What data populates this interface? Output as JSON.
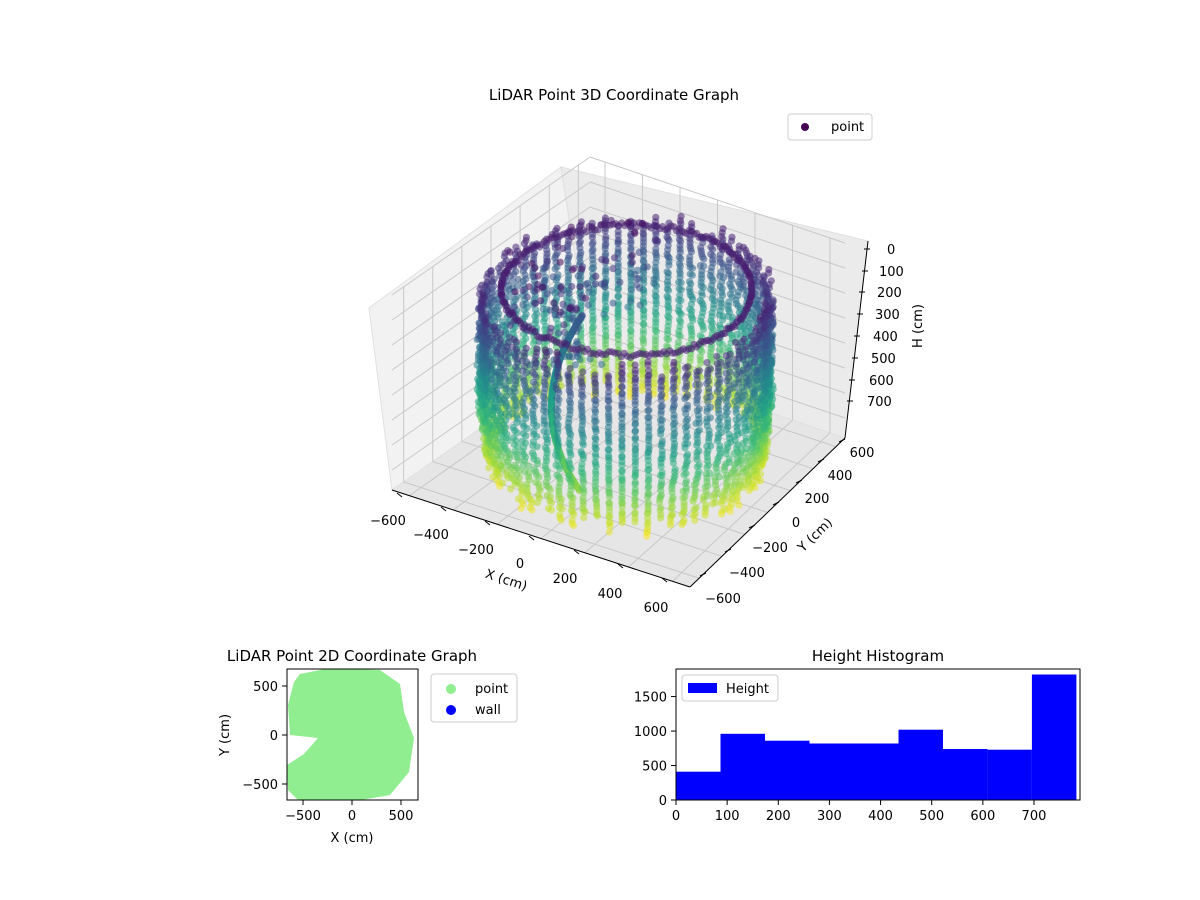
{
  "chart_data": [
    {
      "type": "scatter",
      "title": "LiDAR Point 3D Coordinate Graph",
      "projection": "3d",
      "colormap": "viridis",
      "xlabel": "X (cm)",
      "ylabel": "Y (cm)",
      "zlabel": "H (cm)",
      "xlim": [
        -680,
        680
      ],
      "ylim": [
        -680,
        680
      ],
      "zlim": [
        0,
        780
      ],
      "z_inverted": true,
      "xticks": [
        "−600",
        "−400",
        "−200",
        "0",
        "200",
        "400",
        "600"
      ],
      "yticks": [
        "−600",
        "−400",
        "−200",
        "0",
        "200",
        "400",
        "600"
      ],
      "zticks": [
        "0",
        "100",
        "200",
        "300",
        "400",
        "500",
        "600",
        "700"
      ],
      "grid": true,
      "legend": {
        "position": "top-right",
        "entries": [
          {
            "label": "point",
            "color": "#440154"
          }
        ]
      },
      "series": [
        {
          "name": "point",
          "shape": "cylindrical wall scan, radius ~600 cm, heights 0–780 cm, with ceiling points near H 0–150"
        }
      ]
    },
    {
      "type": "scatter",
      "title": "LiDAR Point 2D Coordinate Graph",
      "xlabel": "X (cm)",
      "ylabel": "Y (cm)",
      "xlim": [
        -680,
        680
      ],
      "ylim": [
        -680,
        680
      ],
      "xticks": [
        "−500",
        "0",
        "500"
      ],
      "yticks": [
        "−500",
        "0",
        "500"
      ],
      "legend": {
        "position": "outside-right",
        "entries": [
          {
            "label": "point",
            "color": "#90ee90"
          },
          {
            "label": "wall",
            "color": "#0000ff"
          }
        ]
      },
      "series": [
        {
          "name": "point",
          "color": "#90ee90",
          "shape": "filled disk, radius ~620 cm, wedge notch on left near Y=0"
        },
        {
          "name": "wall",
          "color": "#0000ff",
          "points": []
        }
      ]
    },
    {
      "type": "bar",
      "subtype": "histogram",
      "title": "Height Histogram",
      "xlim": [
        0,
        790
      ],
      "ylim": [
        0,
        1900
      ],
      "xticks": [
        "0",
        "100",
        "200",
        "300",
        "400",
        "500",
        "600",
        "700"
      ],
      "yticks": [
        "0",
        "500",
        "1000",
        "1500"
      ],
      "color": "#0000ff",
      "legend": {
        "position": "top-left",
        "entries": [
          {
            "label": "Height",
            "color": "#0000ff"
          }
        ]
      },
      "series": [
        {
          "name": "Height",
          "bin_edges": [
            0,
            87,
            174,
            261,
            348,
            435,
            522,
            609,
            696,
            783
          ],
          "values": [
            410,
            960,
            860,
            820,
            820,
            1020,
            740,
            730,
            1820
          ]
        }
      ]
    }
  ]
}
